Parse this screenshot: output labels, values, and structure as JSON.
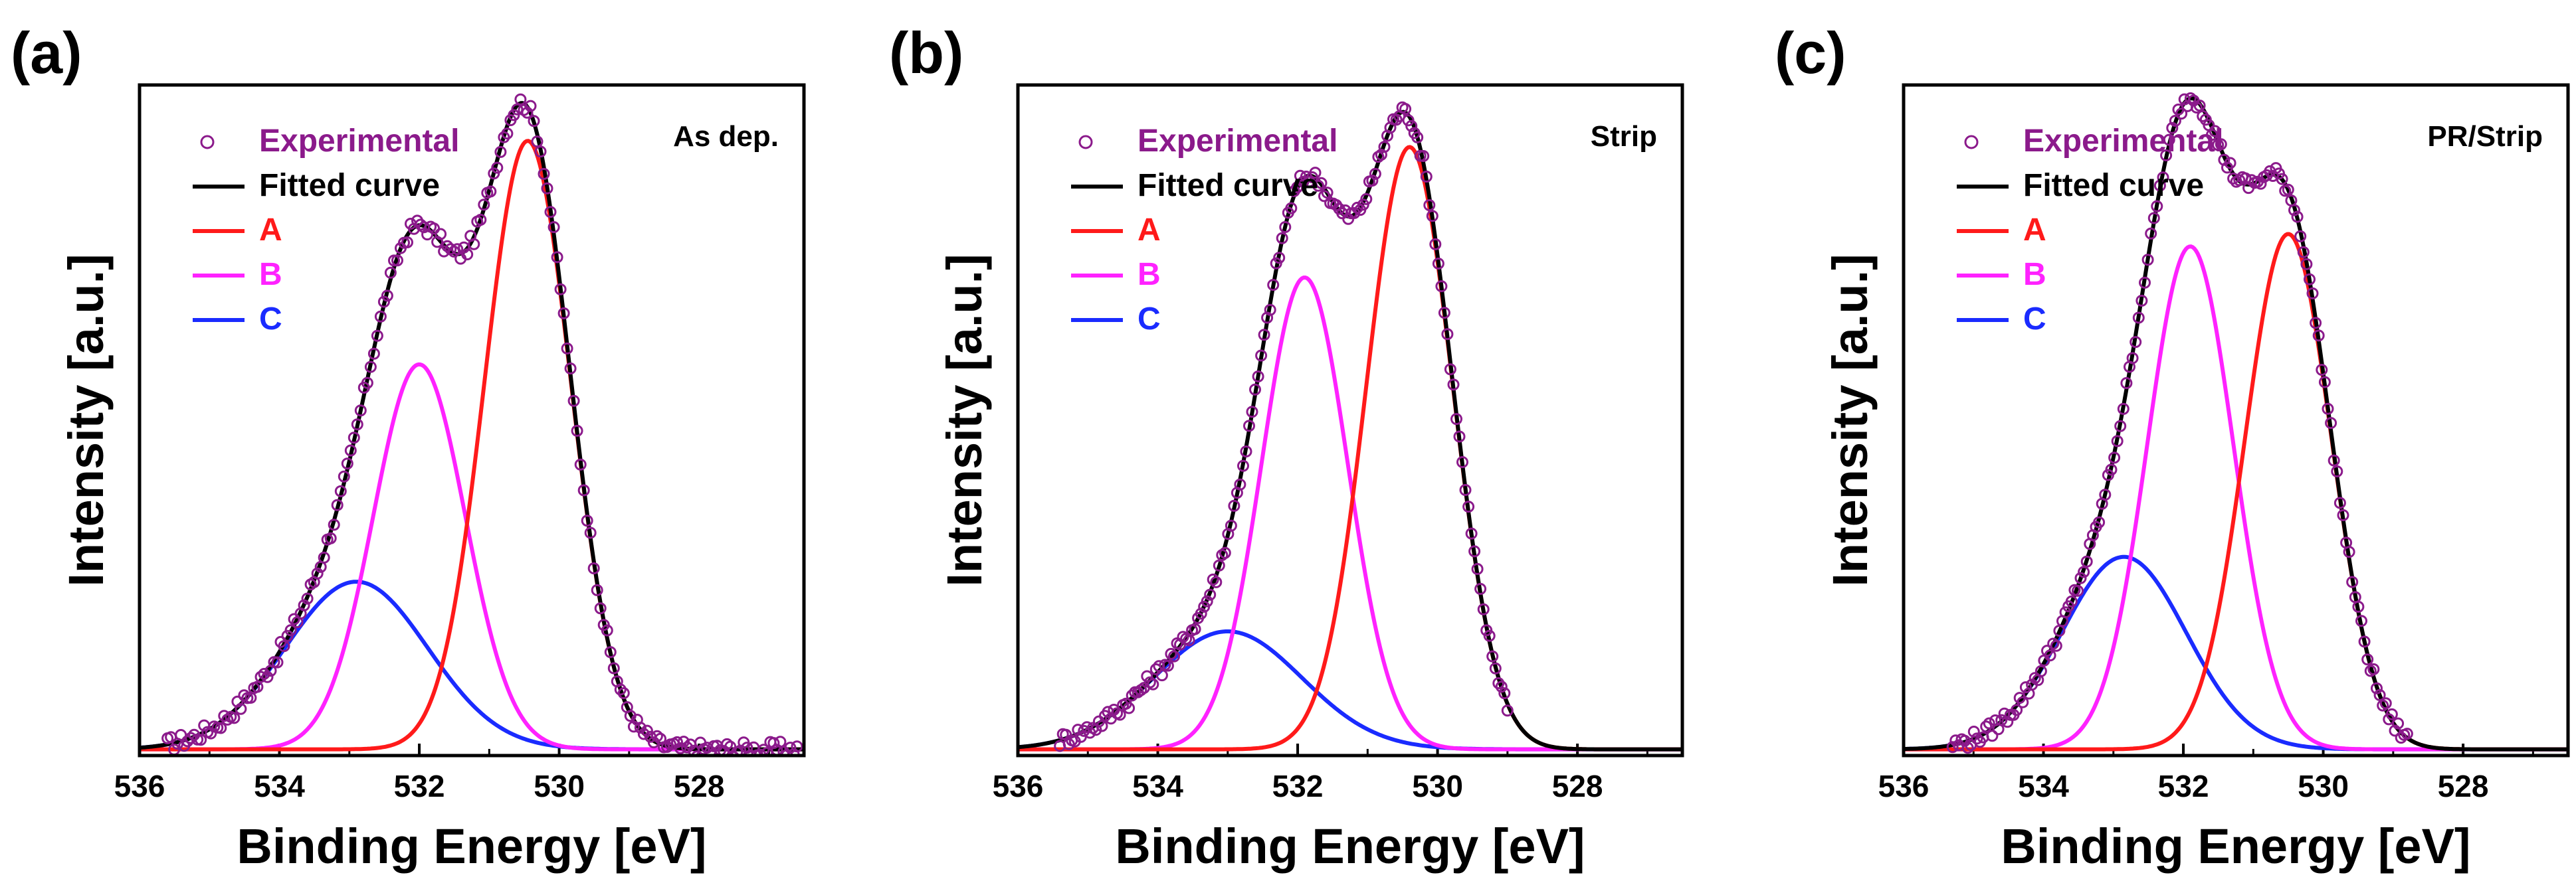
{
  "figure": {
    "panels_count": 3
  },
  "chart_data": [
    {
      "type": "line",
      "panel_label": "(a)",
      "sample_label": "As dep.",
      "xlabel": "Binding Energy [eV]",
      "ylabel": "Intensity [a.u.]",
      "xlim": [
        536,
        526.5
      ],
      "ylim": [
        0,
        1.08
      ],
      "x_ticks": [
        536,
        534,
        532,
        530,
        528
      ],
      "x_tick_labels": [
        "536",
        "534",
        "532",
        "530",
        "528"
      ],
      "y_ticks_labeled": false,
      "grid": false,
      "legend_position": "top-left",
      "baseline": 0.01,
      "series": [
        {
          "name": "Experimental",
          "kind": "scatter",
          "marker": "open-circle",
          "color": "#8B1A8B",
          "x_range": [
            535.6,
            526.6
          ],
          "n_points": 190,
          "follows": "Fitted curve"
        },
        {
          "name": "Fitted curve",
          "kind": "line",
          "color": "#000000",
          "sum_of": [
            "A",
            "B",
            "C"
          ]
        },
        {
          "name": "A",
          "kind": "line",
          "color": "#FF1A1A",
          "center": 530.45,
          "height": 0.98,
          "fwhm": 1.45
        },
        {
          "name": "B",
          "kind": "line",
          "color": "#FF22FF",
          "center": 532.0,
          "height": 0.62,
          "fwhm": 1.55
        },
        {
          "name": "C",
          "kind": "line",
          "color": "#1A2BFF",
          "center": 532.9,
          "height": 0.27,
          "fwhm": 2.4
        }
      ]
    },
    {
      "type": "line",
      "panel_label": "(b)",
      "sample_label": "Strip",
      "xlabel": "Binding Energy [eV]",
      "ylabel": "Intensity [a.u.]",
      "xlim": [
        536,
        526.5
      ],
      "ylim": [
        0,
        1.08
      ],
      "x_ticks": [
        536,
        534,
        532,
        530,
        528
      ],
      "x_tick_labels": [
        "536",
        "534",
        "532",
        "530",
        "528"
      ],
      "y_ticks_labeled": false,
      "grid": false,
      "legend_position": "top-left",
      "baseline": 0.01,
      "series": [
        {
          "name": "Experimental",
          "kind": "scatter",
          "marker": "open-circle",
          "color": "#8B1A8B",
          "x_range": [
            535.4,
            529.0
          ],
          "n_points": 150,
          "follows": "Fitted curve"
        },
        {
          "name": "Fitted curve",
          "kind": "line",
          "color": "#000000",
          "sum_of": [
            "A",
            "B",
            "C"
          ]
        },
        {
          "name": "A",
          "kind": "line",
          "color": "#FF1A1A",
          "center": 530.4,
          "height": 0.97,
          "fwhm": 1.45
        },
        {
          "name": "B",
          "kind": "line",
          "color": "#FF22FF",
          "center": 531.9,
          "height": 0.76,
          "fwhm": 1.45
        },
        {
          "name": "C",
          "kind": "line",
          "color": "#1A2BFF",
          "center": 533.0,
          "height": 0.19,
          "fwhm": 2.5
        }
      ]
    },
    {
      "type": "line",
      "panel_label": "(c)",
      "sample_label": "PR/Strip",
      "xlabel": "Binding Energy [eV]",
      "ylabel": "Intensity [a.u.]",
      "xlim": [
        536,
        526.5
      ],
      "ylim": [
        0,
        1.08
      ],
      "x_ticks": [
        536,
        534,
        532,
        530,
        528
      ],
      "x_tick_labels": [
        "536",
        "534",
        "532",
        "530",
        "528"
      ],
      "y_ticks_labeled": false,
      "grid": false,
      "legend_position": "top-left",
      "baseline": 0.01,
      "series": [
        {
          "name": "Experimental",
          "kind": "scatter",
          "marker": "open-circle",
          "color": "#8B1A8B",
          "x_range": [
            535.3,
            528.8
          ],
          "n_points": 150,
          "follows": "Fitted curve"
        },
        {
          "name": "Fitted curve",
          "kind": "line",
          "color": "#000000",
          "sum_of": [
            "A",
            "B",
            "C"
          ]
        },
        {
          "name": "A",
          "kind": "line",
          "color": "#FF1A1A",
          "center": 530.5,
          "height": 0.83,
          "fwhm": 1.45
        },
        {
          "name": "B",
          "kind": "line",
          "color": "#FF22FF",
          "center": 531.9,
          "height": 0.81,
          "fwhm": 1.45
        },
        {
          "name": "C",
          "kind": "line",
          "color": "#1A2BFF",
          "center": 532.85,
          "height": 0.31,
          "fwhm": 2.1
        }
      ]
    }
  ]
}
